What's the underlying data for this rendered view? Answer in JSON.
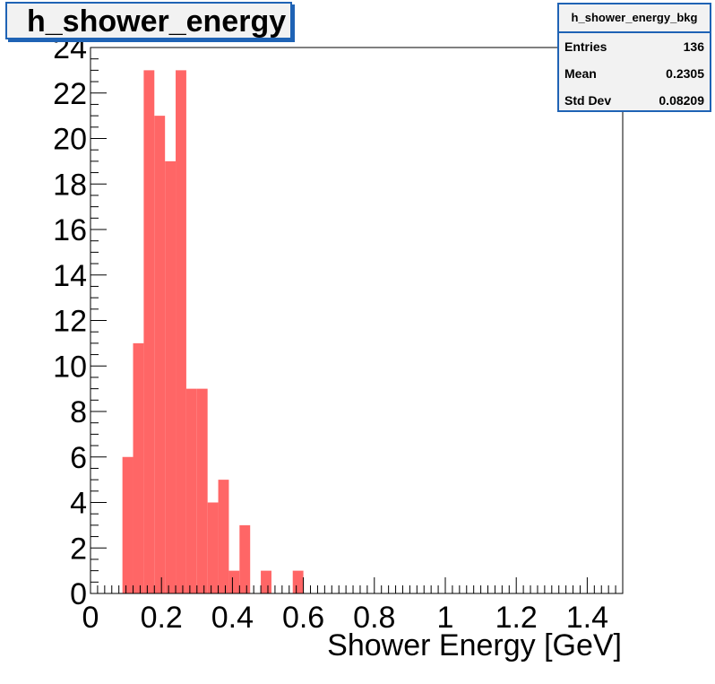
{
  "title": "h_shower_energy",
  "stats": {
    "name": "h_shower_energy_bkg",
    "rows": [
      {
        "label": "Entries",
        "value": "136"
      },
      {
        "label": "Mean",
        "value": "0.2305"
      },
      {
        "label": "Std Dev",
        "value": "0.08209"
      }
    ]
  },
  "colors": {
    "bar": "#ff6666",
    "accent": "#1f63b5"
  },
  "chart_data": {
    "type": "bar",
    "title": "h_shower_energy",
    "xlabel": "Shower Energy [GeV]",
    "ylabel": "",
    "xlim": [
      0,
      1.5
    ],
    "ylim": [
      0,
      24
    ],
    "bin_width": 0.03,
    "bins": [
      {
        "x": 0.09,
        "y": 6
      },
      {
        "x": 0.12,
        "y": 11
      },
      {
        "x": 0.15,
        "y": 23
      },
      {
        "x": 0.18,
        "y": 21
      },
      {
        "x": 0.21,
        "y": 19
      },
      {
        "x": 0.24,
        "y": 23
      },
      {
        "x": 0.27,
        "y": 9
      },
      {
        "x": 0.3,
        "y": 9
      },
      {
        "x": 0.33,
        "y": 4
      },
      {
        "x": 0.36,
        "y": 5
      },
      {
        "x": 0.39,
        "y": 1
      },
      {
        "x": 0.42,
        "y": 3
      },
      {
        "x": 0.48,
        "y": 1
      },
      {
        "x": 0.57,
        "y": 1
      }
    ],
    "x_ticks": [
      "0",
      "0.2",
      "0.4",
      "0.6",
      "0.8",
      "1",
      "1.2",
      "1.4"
    ],
    "y_ticks": [
      "0",
      "2",
      "4",
      "6",
      "8",
      "10",
      "12",
      "14",
      "16",
      "18",
      "20",
      "22",
      "24"
    ]
  }
}
